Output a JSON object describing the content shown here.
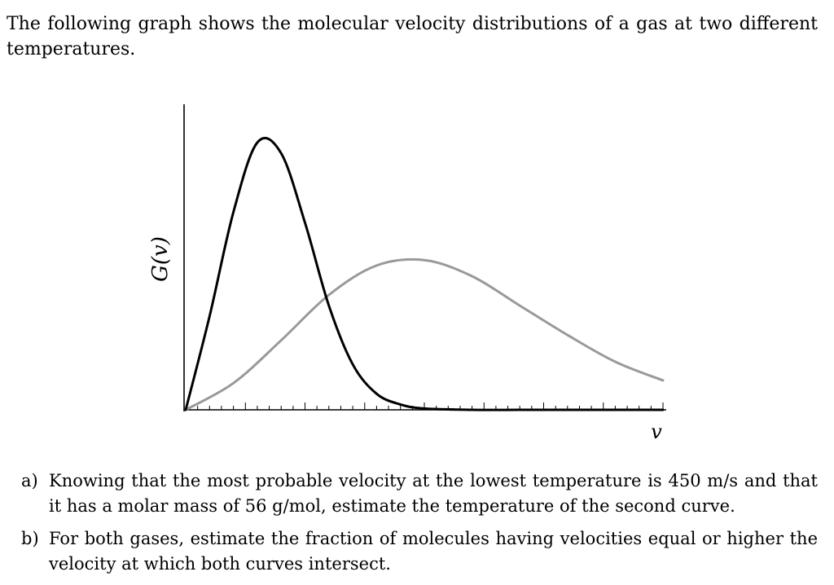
{
  "intro": {
    "text": "The following graph shows the molecular velocity distributions of a gas at two different temperatures."
  },
  "chart_data": {
    "type": "line",
    "xlabel": "v",
    "ylabel": "G(v)",
    "x_ticks_labeled": false,
    "y_ticks_labeled": false,
    "grid": false,
    "series": [
      {
        "color": "#000000",
        "x": [
          0,
          0.5,
          1,
          1.5,
          2,
          2.5,
          3,
          3.5,
          4,
          4.5,
          5,
          6,
          7,
          8,
          9,
          10
        ],
        "values": [
          0,
          0.35,
          0.74,
          1.0,
          0.96,
          0.7,
          0.39,
          0.17,
          0.06,
          0.02,
          0.005,
          0.0,
          0.0,
          0.0,
          0.0,
          0.0
        ]
      },
      {
        "color": "#999999",
        "x": [
          0,
          1,
          2,
          3,
          4,
          5,
          6,
          7,
          8,
          9,
          10
        ],
        "values": [
          0,
          0.1,
          0.26,
          0.43,
          0.54,
          0.56,
          0.5,
          0.39,
          0.28,
          0.18,
          0.11
        ]
      }
    ]
  },
  "questions": [
    {
      "label": "a)",
      "text": "Knowing that the most probable velocity at the lowest temperature is 450 m/s and that it has a molar mass of 56 g/mol, estimate the temperature of the second curve."
    },
    {
      "label": "b)",
      "text": "For both gases, estimate the fraction of molecules having velocities equal or higher the velocity at which both curves intersect."
    }
  ]
}
